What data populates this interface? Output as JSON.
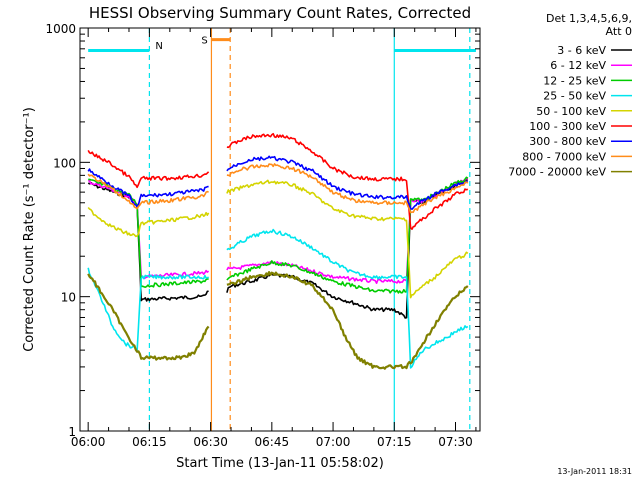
{
  "chart_data": {
    "type": "line",
    "title": "HESSI Observing Summary Count Rates, Corrected",
    "xlabel": "Start Time (13-Jan-11 05:58:02)",
    "ylabel": "Corrected Count Rate (s⁻¹ detector⁻¹)",
    "x_unit": "minutes after 06:00",
    "xlim": [
      -2,
      96
    ],
    "ylim": [
      1,
      1000
    ],
    "yscale": "log",
    "grid": false,
    "xticks": [
      {
        "label": "06:00",
        "x": 0
      },
      {
        "label": "06:15",
        "x": 15
      },
      {
        "label": "06:30",
        "x": 30
      },
      {
        "label": "06:45",
        "x": 45
      },
      {
        "label": "07:00",
        "x": 60
      },
      {
        "label": "07:15",
        "x": 75
      },
      {
        "label": "07:30",
        "x": 90
      }
    ],
    "yticks": [
      {
        "label": "1",
        "y": 1
      },
      {
        "label": "10",
        "y": 10
      },
      {
        "label": "100",
        "y": 100
      },
      {
        "label": "1000",
        "y": 1000
      }
    ],
    "legend": {
      "placement": "right",
      "title_lines": [
        "Det 1,3,4,5,6,9,",
        "Att 0"
      ]
    },
    "series": [
      {
        "name": "3 - 6 keV",
        "color": "#000000",
        "x": [
          0,
          5,
          10,
          12,
          13,
          28,
          29.5,
          34,
          35,
          40,
          45,
          50,
          55,
          60,
          65,
          70,
          72,
          75,
          78,
          79,
          82,
          85,
          88,
          90,
          93
        ],
        "y": [
          70,
          62,
          55,
          47,
          9.5,
          10,
          11,
          11,
          12,
          13,
          14.5,
          14,
          12.5,
          10,
          9,
          8,
          8,
          8,
          7,
          52,
          50,
          56,
          63,
          68,
          74
        ]
      },
      {
        "name": "6 - 12 keV",
        "color": "#ff00ff",
        "x": [
          0,
          5,
          10,
          12,
          13,
          28,
          29.5,
          34,
          35,
          40,
          45,
          50,
          55,
          60,
          65,
          70,
          72,
          75,
          78,
          79,
          82,
          85,
          88,
          90,
          93
        ],
        "y": [
          72,
          64,
          56,
          48,
          14,
          15,
          15.5,
          16,
          16,
          17,
          18,
          17,
          15.5,
          14,
          13.5,
          13,
          13,
          13,
          13,
          53,
          51,
          57,
          64,
          69,
          75
        ]
      },
      {
        "name": "12 - 25 keV",
        "color": "#00cc00",
        "x": [
          0,
          5,
          10,
          12,
          13,
          28,
          29.5,
          34,
          35,
          40,
          45,
          50,
          55,
          60,
          65,
          70,
          72,
          75,
          78,
          79,
          82,
          85,
          88,
          90,
          93
        ],
        "y": [
          74,
          66,
          57,
          49,
          12,
          13,
          13.5,
          13,
          14,
          16,
          18,
          17,
          15,
          13,
          12,
          11,
          11,
          11,
          11,
          54,
          52,
          58,
          65,
          70,
          76
        ]
      },
      {
        "name": "25 - 50 keV",
        "color": "#00e5ee",
        "x": [
          0,
          3,
          6,
          9,
          12,
          13,
          28,
          29.5,
          34,
          37,
          40,
          45,
          50,
          55,
          60,
          65,
          70,
          72,
          75,
          78,
          79,
          82,
          85,
          88,
          90,
          93
        ],
        "y": [
          16,
          10,
          6,
          4.5,
          4,
          14,
          14,
          14,
          22,
          25,
          28,
          31,
          28,
          23,
          18,
          15,
          14,
          14,
          14,
          14,
          3,
          4,
          4.5,
          5,
          5.5,
          6
        ]
      },
      {
        "name": "50 - 100 keV",
        "color": "#d4d400",
        "x": [
          0,
          3,
          6,
          9,
          12,
          13,
          20,
          28,
          29.5,
          34,
          37,
          40,
          45,
          50,
          55,
          60,
          65,
          70,
          75,
          78,
          79,
          82,
          85,
          88,
          90,
          93
        ],
        "y": [
          45,
          38,
          33,
          30,
          28,
          35,
          37,
          40,
          42,
          60,
          64,
          68,
          72,
          68,
          58,
          45,
          40,
          38,
          38,
          38,
          10,
          12,
          14,
          17,
          19,
          21
        ]
      },
      {
        "name": "100 - 300 keV",
        "color": "#ff0000",
        "x": [
          0,
          5,
          10,
          12,
          13,
          20,
          28,
          29.5,
          34,
          37,
          40,
          45,
          50,
          55,
          60,
          65,
          70,
          75,
          78,
          79,
          82,
          85,
          88,
          90,
          93
        ],
        "y": [
          120,
          100,
          78,
          65,
          76,
          76,
          80,
          85,
          130,
          145,
          155,
          160,
          150,
          120,
          90,
          78,
          75,
          75,
          75,
          32,
          38,
          45,
          52,
          58,
          63
        ]
      },
      {
        "name": "300 - 800 keV",
        "color": "#0000ff",
        "x": [
          0,
          5,
          10,
          12,
          13,
          20,
          28,
          29.5,
          34,
          37,
          40,
          45,
          50,
          55,
          60,
          65,
          70,
          75,
          78,
          79,
          82,
          85,
          88,
          90,
          93
        ],
        "y": [
          88,
          70,
          56,
          46,
          56,
          58,
          62,
          66,
          88,
          98,
          105,
          108,
          100,
          86,
          66,
          58,
          55,
          55,
          55,
          45,
          52,
          58,
          64,
          68,
          72
        ]
      },
      {
        "name": "800 - 7000 keV",
        "color": "#ff8c1a",
        "x": [
          0,
          5,
          10,
          12,
          13,
          20,
          28,
          29.5,
          34,
          37,
          40,
          45,
          50,
          55,
          60,
          65,
          70,
          75,
          78,
          79,
          82,
          85,
          88,
          90,
          93
        ],
        "y": [
          82,
          66,
          52,
          44,
          50,
          52,
          56,
          60,
          80,
          88,
          92,
          96,
          90,
          78,
          60,
          52,
          50,
          50,
          50,
          42,
          48,
          55,
          60,
          65,
          70
        ]
      },
      {
        "name": "7000 - 20000 keV",
        "color": "#808000",
        "x": [
          0,
          3,
          6,
          9,
          12,
          13,
          18,
          22,
          26,
          28,
          29.5,
          34,
          37,
          40,
          45,
          50,
          55,
          60,
          63,
          66,
          70,
          73,
          75,
          78,
          80,
          83,
          86,
          90,
          93
        ],
        "y": [
          15,
          11,
          8,
          5.5,
          4,
          3.5,
          3.5,
          3.5,
          3.8,
          5,
          6,
          12,
          13,
          14,
          15,
          14,
          12,
          8,
          5,
          3.5,
          3,
          3,
          3,
          3,
          3.5,
          5,
          7,
          10,
          12
        ]
      }
    ],
    "attenuator_bars": [
      {
        "label": "",
        "x": [
          0,
          15
        ],
        "y": 680,
        "color": "#00e5ee"
      },
      {
        "label": "",
        "x": [
          75,
          95
        ],
        "y": 680,
        "color": "#00e5ee"
      },
      {
        "label": "S",
        "x": [
          30.2,
          34.8
        ],
        "y": 820,
        "color": "#ff8c1a"
      }
    ],
    "region_markers": [
      {
        "x": 15,
        "color": "#00e5ee",
        "style": "dashed",
        "label": "N"
      },
      {
        "x": 75,
        "color": "#00e5ee",
        "style": "solid",
        "label": ""
      },
      {
        "x": 93.5,
        "color": "#00e5ee",
        "style": "dashed",
        "label": ""
      },
      {
        "x": 30.2,
        "color": "#ff8c1a",
        "style": "solid",
        "label": ""
      },
      {
        "x": 34.8,
        "color": "#ff8c1a",
        "style": "dashed",
        "label": ""
      }
    ],
    "footer_timestamp": "13-Jan-2011 18:31"
  }
}
